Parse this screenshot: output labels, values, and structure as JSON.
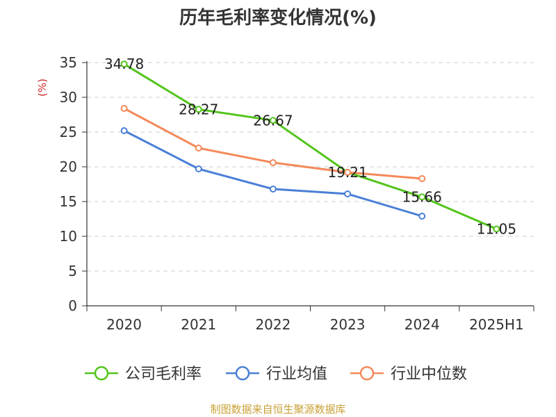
{
  "chart_data": {
    "type": "line",
    "title": "历年毛利率变化情况(%)",
    "ylabel": "(%)",
    "xlabel": "",
    "categories": [
      "2020",
      "2021",
      "2022",
      "2023",
      "2024",
      "2025H1"
    ],
    "ylim": [
      0,
      35
    ],
    "yticks": [
      0,
      5,
      10,
      15,
      20,
      25,
      30,
      35
    ],
    "grid": true,
    "legend_position": "bottom",
    "series": [
      {
        "name": "公司毛利率",
        "color": "#52c41a",
        "values": [
          34.78,
          28.27,
          26.67,
          19.21,
          15.66,
          11.05
        ],
        "labels": [
          "34.78",
          "28.27",
          "26.67",
          "19.21",
          "15.66",
          "11.05"
        ]
      },
      {
        "name": "行业均值",
        "color": "#4a7fd6",
        "values": [
          25.2,
          19.7,
          16.8,
          16.1,
          12.9,
          null
        ]
      },
      {
        "name": "行业中位数",
        "color": "#f4895a",
        "values": [
          28.4,
          22.7,
          20.6,
          19.2,
          18.3,
          null
        ]
      }
    ]
  },
  "source": "制图数据来自恒生聚源数据库",
  "colors": {
    "source_text": "#c8a035",
    "unit_text": "#cc2222",
    "grid": "#cccccc",
    "axis": "#333333"
  }
}
